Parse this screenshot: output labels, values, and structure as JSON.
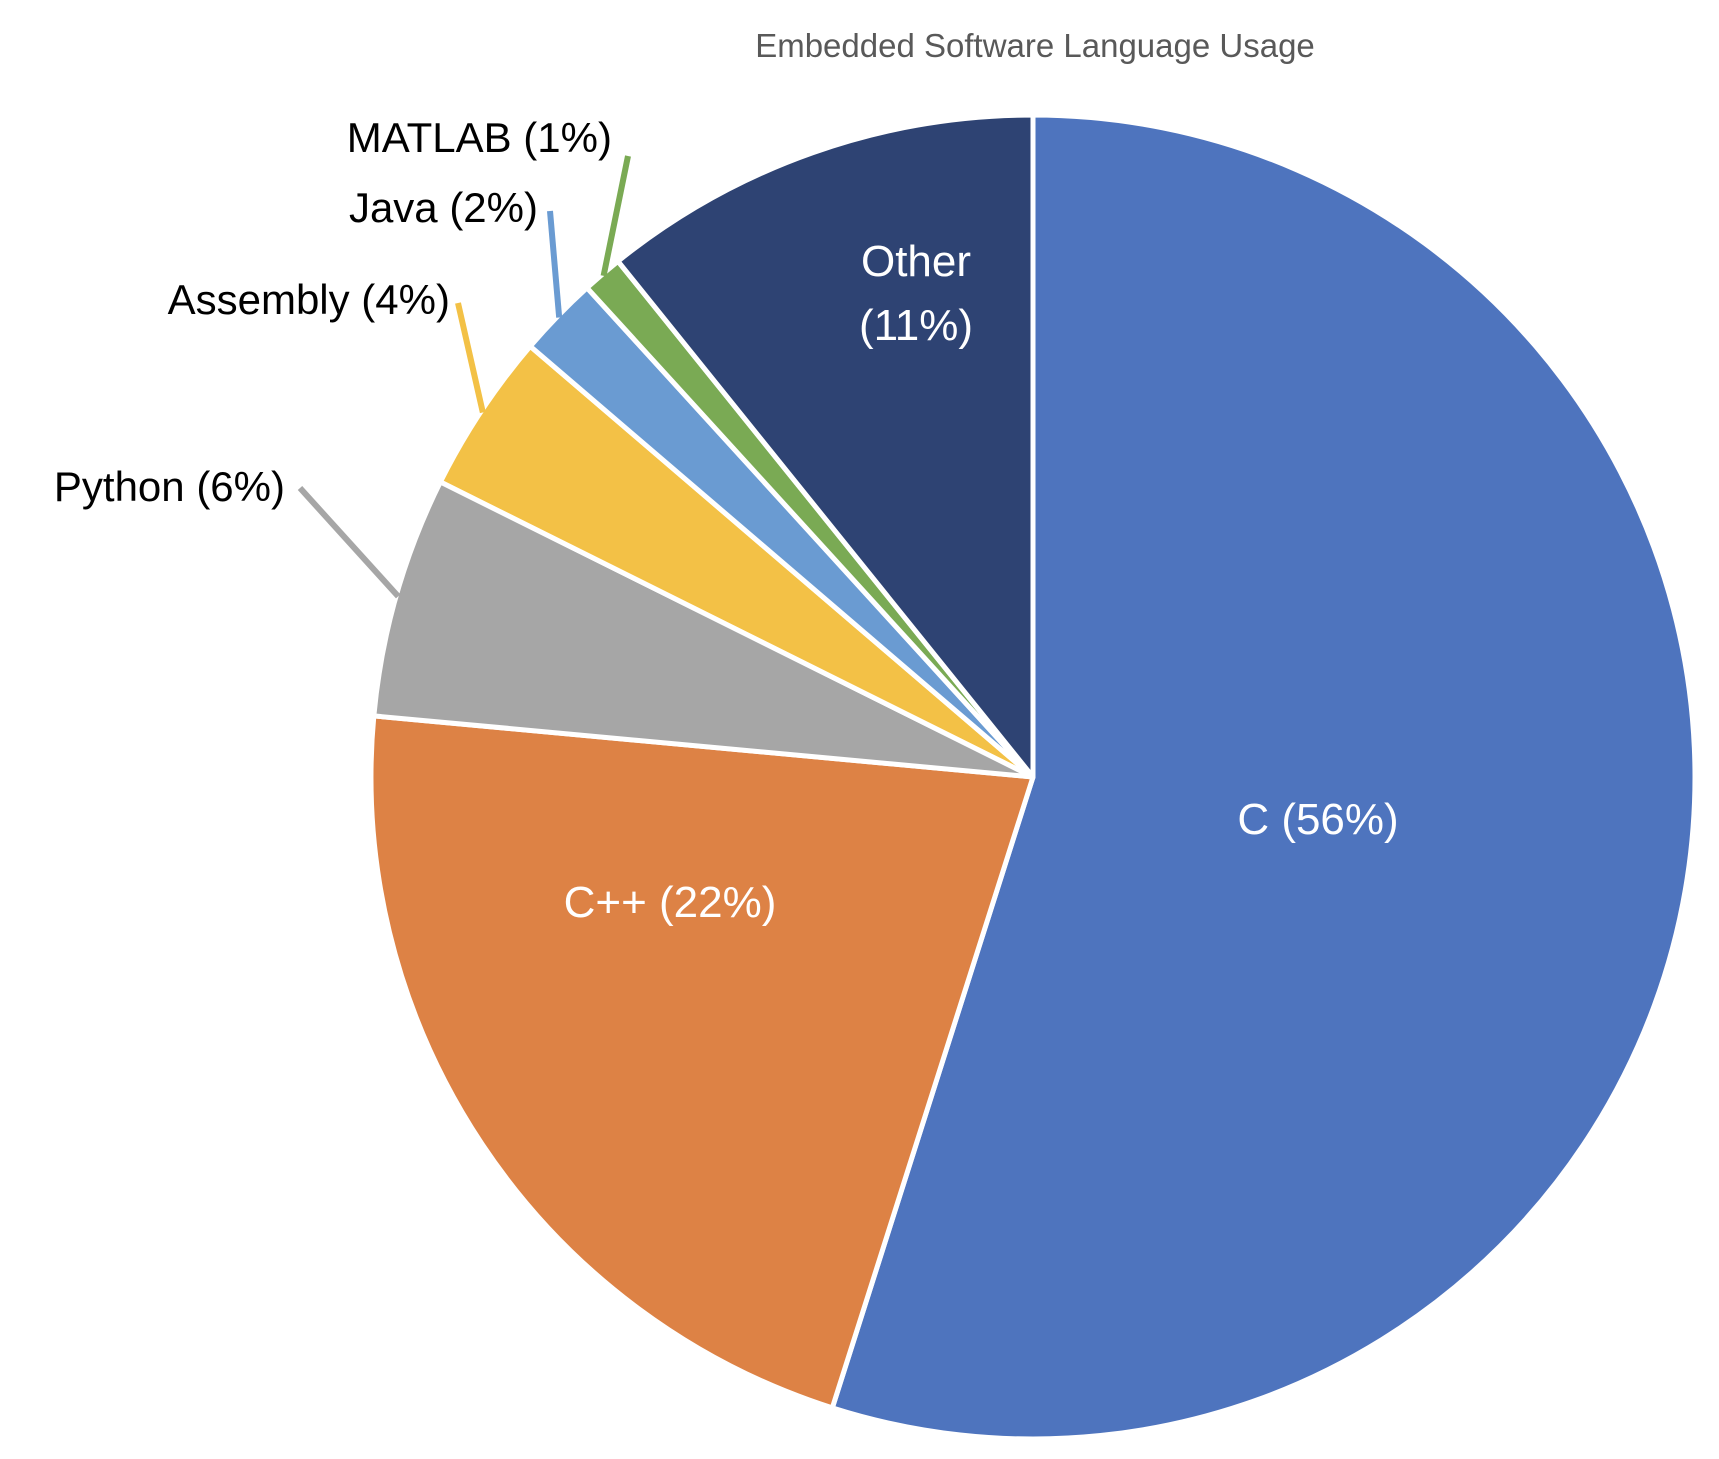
{
  "chart_data": {
    "type": "pie",
    "title": "Embedded Software Language Usage",
    "slices": [
      {
        "name": "C",
        "label": "C (56%)",
        "value": 56,
        "color": "#4E74BE"
      },
      {
        "name": "C++",
        "label": "C++ (22%)",
        "value": 22,
        "color": "#DD8245"
      },
      {
        "name": "Python",
        "label": "Python (6%)",
        "value": 6,
        "color": "#A6A6A6"
      },
      {
        "name": "Assembly",
        "label": "Assembly (4%)",
        "value": 4,
        "color": "#F3C146"
      },
      {
        "name": "Java",
        "label": "Java (2%)",
        "value": 2,
        "color": "#6A9BD2"
      },
      {
        "name": "MATLAB",
        "label": "MATLAB (1%)",
        "value": 1,
        "color": "#7AAA54"
      },
      {
        "name": "Other",
        "label_lines": [
          "Other",
          "(11%)"
        ],
        "value": 11,
        "color": "#2E4373"
      }
    ]
  }
}
